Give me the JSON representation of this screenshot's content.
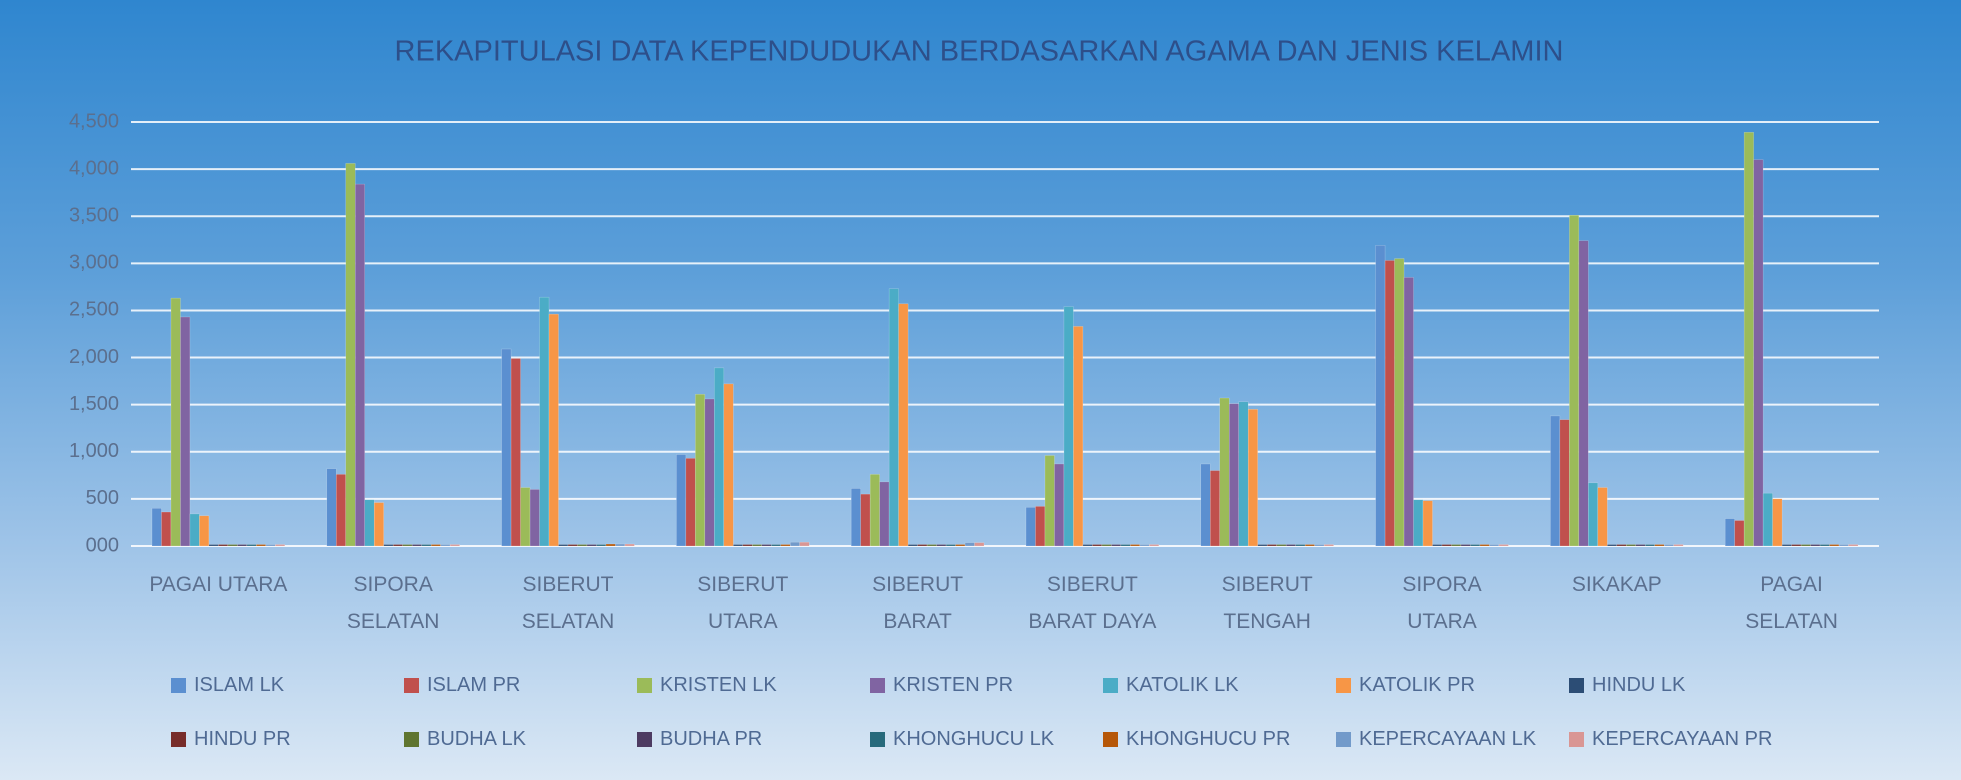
{
  "chart_data": {
    "type": "bar",
    "title": "REKAPITULASI DATA KEPENDUDUKAN BERDASARKAN AGAMA DAN JENIS KELAMIN",
    "categories": [
      "PAGAI UTARA",
      "SIPORA SELATAN",
      "SIBERUT SELATAN",
      "SIBERUT UTARA",
      "SIBERUT BARAT",
      "SIBERUT BARAT DAYA",
      "SIBERUT TENGAH",
      "SIPORA UTARA",
      "SIKAKAP",
      "PAGAI SELATAN"
    ],
    "series": [
      {
        "name": "ISLAM LK",
        "color": "#5b8fd0",
        "values": [
          390,
          810,
          2080,
          960,
          600,
          400,
          860,
          3180,
          1370,
          280
        ]
      },
      {
        "name": "ISLAM PR",
        "color": "#c0504d",
        "values": [
          350,
          750,
          1980,
          920,
          540,
          410,
          790,
          3020,
          1330,
          260
        ]
      },
      {
        "name": "KRISTEN LK",
        "color": "#9bbb59",
        "values": [
          2620,
          4050,
          610,
          1600,
          750,
          950,
          1560,
          3040,
          3500,
          4380
        ]
      },
      {
        "name": "KRISTEN PR",
        "color": "#8064a2",
        "values": [
          2420,
          3830,
          590,
          1550,
          670,
          860,
          1500,
          2840,
          3230,
          4090
        ]
      },
      {
        "name": "KATOLIK LK",
        "color": "#4bacc6",
        "values": [
          330,
          480,
          2630,
          1880,
          2720,
          2530,
          1520,
          480,
          660,
          550
        ]
      },
      {
        "name": "KATOLIK PR",
        "color": "#f79646",
        "values": [
          310,
          450,
          2450,
          1710,
          2560,
          2320,
          1440,
          470,
          610,
          490
        ]
      },
      {
        "name": "HINDU LK",
        "color": "#2c4d75",
        "values": [
          5,
          5,
          5,
          5,
          5,
          5,
          5,
          5,
          5,
          5
        ]
      },
      {
        "name": "HINDU PR",
        "color": "#772c2a",
        "values": [
          5,
          5,
          5,
          5,
          5,
          5,
          5,
          5,
          5,
          5
        ]
      },
      {
        "name": "BUDHA LK",
        "color": "#5f7530",
        "values": [
          5,
          5,
          5,
          5,
          5,
          5,
          5,
          5,
          5,
          5
        ]
      },
      {
        "name": "BUDHA PR",
        "color": "#4d3b62",
        "values": [
          5,
          5,
          5,
          5,
          5,
          5,
          5,
          5,
          5,
          5
        ]
      },
      {
        "name": "KHONGHUCU LK",
        "color": "#276a7c",
        "values": [
          5,
          5,
          5,
          5,
          5,
          5,
          5,
          5,
          5,
          5
        ]
      },
      {
        "name": "KHONGHUCU PR",
        "color": "#b65708",
        "values": [
          5,
          5,
          10,
          5,
          5,
          5,
          5,
          5,
          5,
          5
        ]
      },
      {
        "name": "KEPERCAYAAN LK",
        "color": "#729aca",
        "values": [
          5,
          5,
          10,
          30,
          25,
          5,
          5,
          5,
          5,
          5
        ]
      },
      {
        "name": "KEPERCAYAAN PR",
        "color": "#d99694",
        "values": [
          5,
          5,
          10,
          30,
          25,
          5,
          5,
          5,
          5,
          5
        ]
      }
    ],
    "ylim": [
      0,
      4500
    ],
    "yticks": [
      {
        "value": 0,
        "label": "000"
      },
      500,
      {
        "value": 1000,
        "label": "1,000"
      },
      {
        "value": 1500,
        "label": "1,500"
      },
      {
        "value": 2000,
        "label": "2,000"
      },
      {
        "value": 2500,
        "label": "2,500"
      },
      {
        "value": 3000,
        "label": "3,000"
      },
      {
        "value": 3500,
        "label": "3,500"
      },
      {
        "value": 4000,
        "label": "4,000"
      },
      {
        "value": 4500,
        "label": "4,500"
      }
    ],
    "grid": true,
    "legend": "bottom"
  }
}
